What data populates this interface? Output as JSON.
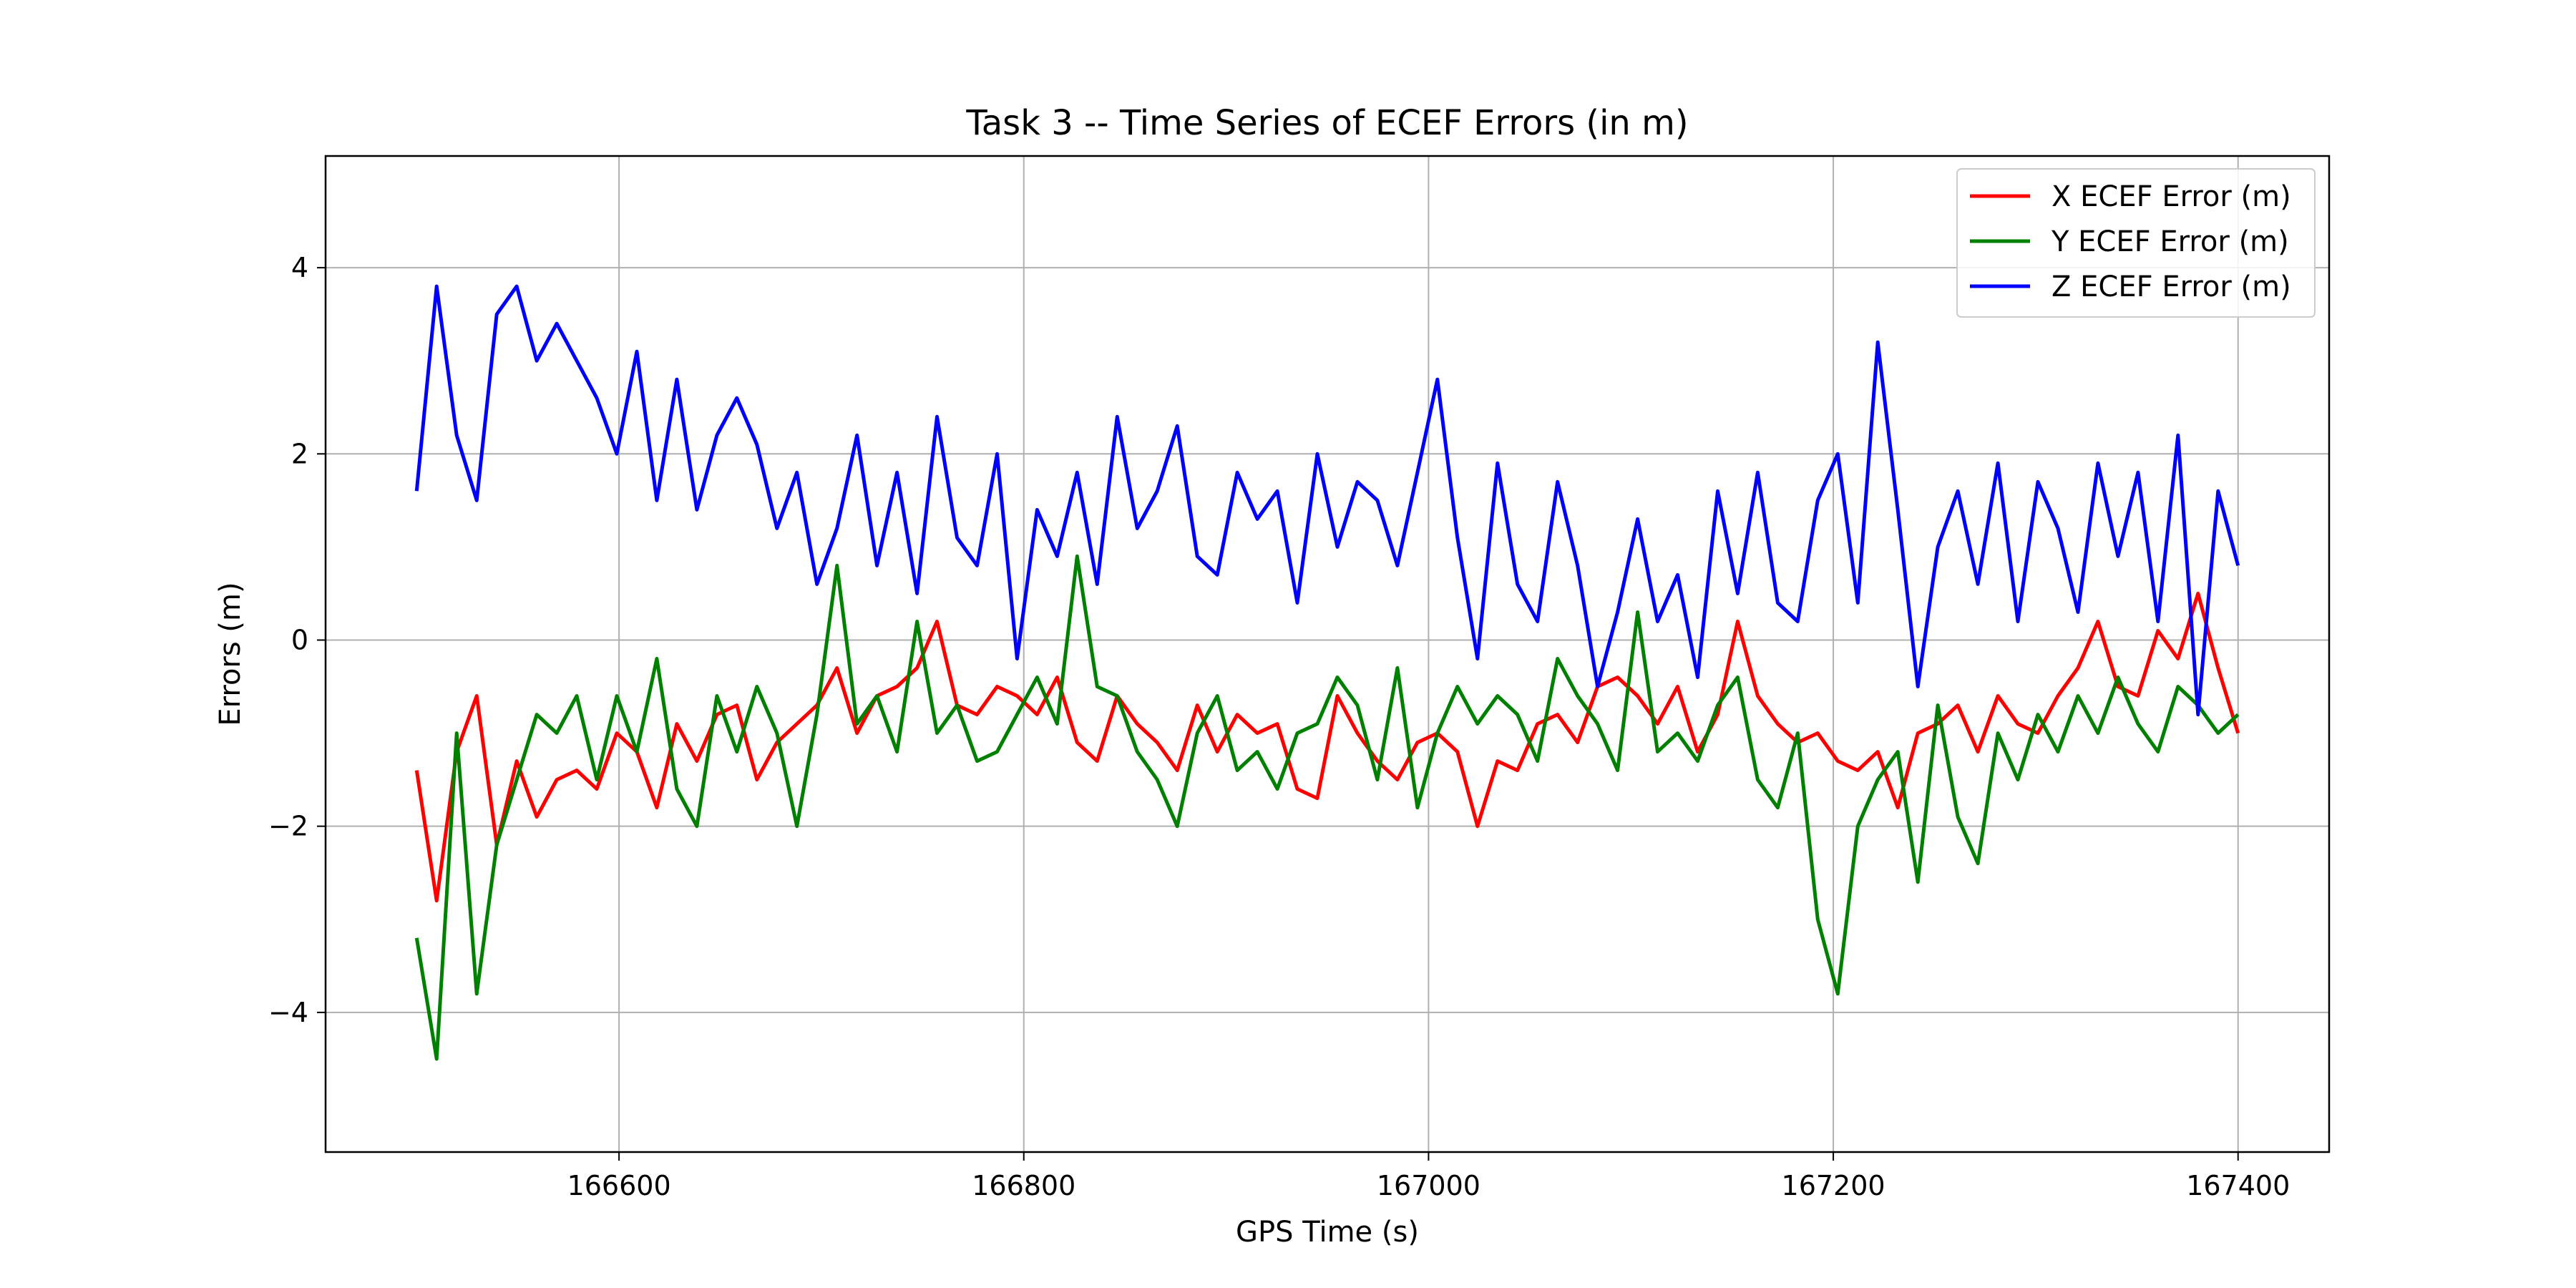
{
  "chart_data": {
    "type": "line",
    "title": "Task 3 -- Time Series of ECEF Errors (in m)",
    "xlabel": "GPS Time (s)",
    "ylabel": "Errors (m)",
    "xlim": [
      166455,
      167445
    ],
    "ylim": [
      -5.5,
      5.2
    ],
    "xticks": [
      166600,
      166800,
      167000,
      167200,
      167400
    ],
    "yticks": [
      -4,
      -2,
      0,
      2,
      4
    ],
    "xtick_labels": [
      "166600",
      "166800",
      "167000",
      "167200",
      "167400"
    ],
    "ytick_labels": [
      "−4",
      "−2",
      "0",
      "2",
      "4"
    ],
    "grid": true,
    "legend_position": "top-right",
    "x_start": 166500,
    "x_step": 25,
    "series": [
      {
        "name": "X ECEF Error (m)",
        "color": "#ff0000",
        "values": [
          -1.4,
          -2.8,
          -1.2,
          -0.6,
          -2.2,
          -1.3,
          -1.9,
          -1.5,
          -1.4,
          -1.6,
          -1.0,
          -1.2,
          -1.8,
          -0.9,
          -1.3,
          -0.8,
          -0.7,
          -1.5,
          -1.1,
          -0.9,
          -0.7,
          -0.3,
          -1.0,
          -0.6,
          -0.5,
          -0.3,
          0.2,
          -0.7,
          -0.8,
          -0.5,
          -0.6,
          -0.8,
          -0.4,
          -1.1,
          -1.3,
          -0.6,
          -0.9,
          -1.1,
          -1.4,
          -0.7,
          -1.2,
          -0.8,
          -1.0,
          -0.9,
          -1.6,
          -1.7,
          -0.6,
          -1.0,
          -1.3,
          -1.5,
          -1.1,
          -1.0,
          -1.2,
          -2.0,
          -1.3,
          -1.4,
          -0.9,
          -0.8,
          -1.1,
          -0.5,
          -0.4,
          -0.6,
          -0.9,
          -0.5,
          -1.2,
          -0.8,
          0.2,
          -0.6,
          -0.9,
          -1.1,
          -1.0,
          -1.3,
          -1.4,
          -1.2,
          -1.8,
          -1.0,
          -0.9,
          -0.7,
          -1.2,
          -0.6,
          -0.9,
          -1.0,
          -0.6,
          -0.3,
          0.2,
          -0.5,
          -0.6,
          0.1,
          -0.2,
          0.5,
          -0.3,
          -1.0
        ]
      },
      {
        "name": "Y ECEF Error (m)",
        "color": "#008000",
        "values": [
          -3.2,
          -4.5,
          -1.0,
          -3.8,
          -2.2,
          -1.5,
          -0.8,
          -1.0,
          -0.6,
          -1.5,
          -0.6,
          -1.2,
          -0.2,
          -1.6,
          -2.0,
          -0.6,
          -1.2,
          -0.5,
          -1.0,
          -2.0,
          -0.8,
          0.8,
          -0.9,
          -0.6,
          -1.2,
          0.2,
          -1.0,
          -0.7,
          -1.3,
          -1.2,
          -0.8,
          -0.4,
          -0.9,
          0.9,
          -0.5,
          -0.6,
          -1.2,
          -1.5,
          -2.0,
          -1.0,
          -0.6,
          -1.4,
          -1.2,
          -1.6,
          -1.0,
          -0.9,
          -0.4,
          -0.7,
          -1.5,
          -0.3,
          -1.8,
          -1.0,
          -0.5,
          -0.9,
          -0.6,
          -0.8,
          -1.3,
          -0.2,
          -0.6,
          -0.9,
          -1.4,
          0.3,
          -1.2,
          -1.0,
          -1.3,
          -0.7,
          -0.4,
          -1.5,
          -1.8,
          -1.0,
          -3.0,
          -3.8,
          -2.0,
          -1.5,
          -1.2,
          -2.6,
          -0.7,
          -1.9,
          -2.4,
          -1.0,
          -1.5,
          -0.8,
          -1.2,
          -0.6,
          -1.0,
          -0.4,
          -0.9,
          -1.2,
          -0.5,
          -0.7,
          -1.0,
          -0.8
        ]
      },
      {
        "name": "Z ECEF Error (m)",
        "color": "#0000ff",
        "values": [
          1.6,
          3.8,
          2.2,
          1.5,
          3.5,
          3.8,
          3.0,
          3.4,
          3.0,
          2.6,
          2.0,
          3.1,
          1.5,
          2.8,
          1.4,
          2.2,
          2.6,
          2.1,
          1.2,
          1.8,
          0.6,
          1.2,
          2.2,
          0.8,
          1.8,
          0.5,
          2.4,
          1.1,
          0.8,
          2.0,
          -0.2,
          1.4,
          0.9,
          1.8,
          0.6,
          2.4,
          1.2,
          1.6,
          2.3,
          0.9,
          0.7,
          1.8,
          1.3,
          1.6,
          0.4,
          2.0,
          1.0,
          1.7,
          1.5,
          0.8,
          1.8,
          2.8,
          1.1,
          -0.2,
          1.9,
          0.6,
          0.2,
          1.7,
          0.8,
          -0.5,
          0.3,
          1.3,
          0.2,
          0.7,
          -0.4,
          1.6,
          0.5,
          1.8,
          0.4,
          0.2,
          1.5,
          2.0,
          0.4,
          3.2,
          1.4,
          -0.5,
          1.0,
          1.6,
          0.6,
          1.9,
          0.2,
          1.7,
          1.2,
          0.3,
          1.9,
          0.9,
          1.8,
          0.2,
          2.2,
          -0.8,
          1.6,
          0.8
        ]
      }
    ]
  }
}
